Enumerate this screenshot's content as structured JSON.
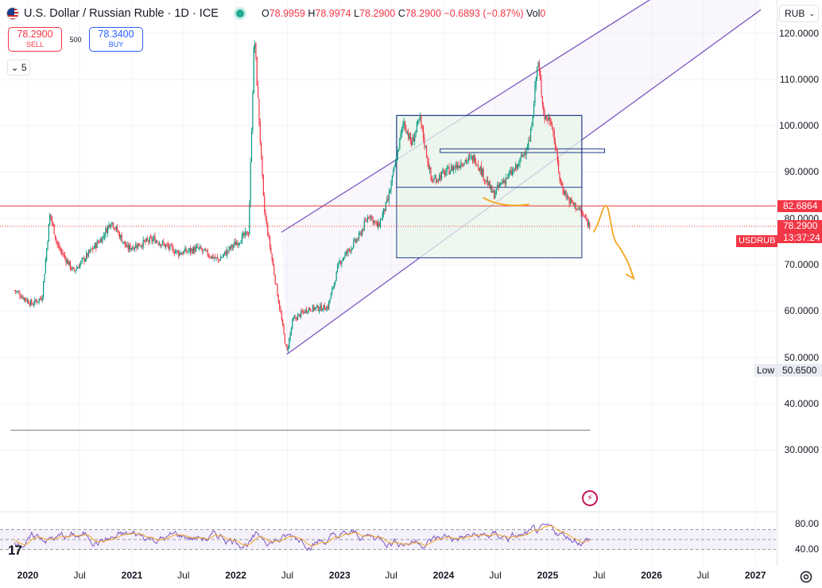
{
  "header": {
    "title": "U.S. Dollar / Russian Ruble · 1D · ICE",
    "o_label": "O",
    "o_value": "78.9959",
    "h_label": "H",
    "h_value": "78.9974",
    "l_label": "L",
    "l_value": "78.2900",
    "c_label": "C",
    "c_value": "78.2900",
    "change": "−0.6893 (−0.87%)",
    "vol_label": "Vol",
    "vol_value": "0"
  },
  "trade": {
    "sell_price": "78.2900",
    "sell_label": "SELL",
    "spread": "500",
    "buy_price": "78.3400",
    "buy_label": "BUY"
  },
  "indicators_collapse": {
    "count": "5"
  },
  "currency_selector": {
    "value": "RUB"
  },
  "price_axis": {
    "labels": [
      "120.0000",
      "110.0000",
      "100.0000",
      "90.0000",
      "80.0000",
      "70.0000",
      "60.0000",
      "50.0000",
      "40.0000",
      "30.0000"
    ]
  },
  "price_tags": {
    "hline_value": "82.6864",
    "symbol": "USDRUB",
    "last_price": "78.2900",
    "countdown": "13:37:24",
    "low_label": "Low",
    "low_value": "50.6500"
  },
  "rsi_axis": {
    "labels": [
      "80.00",
      "40.00"
    ]
  },
  "time_axis": {
    "labels": [
      "2020",
      "Jul",
      "2021",
      "Jul",
      "2022",
      "Jul",
      "2023",
      "Jul",
      "2024",
      "Jul",
      "2025",
      "Jul",
      "2026",
      "Jul",
      "2027"
    ],
    "bold": [
      true,
      false,
      true,
      false,
      true,
      false,
      true,
      false,
      true,
      false,
      true,
      false,
      true,
      false,
      true
    ]
  },
  "branding": {
    "logo": "17"
  },
  "colors": {
    "up": "#089981",
    "down": "#f23645",
    "channel": "#7e57c2",
    "box_fill": "#e8f5e9",
    "box_stroke": "#1e3a8a",
    "hline": "#e53935",
    "annotation": "#f5a623",
    "rsi": "#7e57c2",
    "rsi_ma": "#f5a623"
  },
  "chart_data": {
    "type": "candlestick",
    "symbol": "USDRUB",
    "interval": "1D",
    "ylim": [
      28,
      125
    ],
    "x_range": [
      "2019-11",
      "2027-03"
    ],
    "price_path": [
      [
        "2019-11-15",
        64.5
      ],
      [
        "2020-01-15",
        61.5
      ],
      [
        "2020-02-20",
        63.0
      ],
      [
        "2020-03-19",
        81.0
      ],
      [
        "2020-04-15",
        74.0
      ],
      [
        "2020-06-10",
        68.5
      ],
      [
        "2020-07-20",
        71.5
      ],
      [
        "2020-09-20",
        76.0
      ],
      [
        "2020-10-20",
        79.5
      ],
      [
        "2020-12-15",
        73.5
      ],
      [
        "2021-03-20",
        75.5
      ],
      [
        "2021-06-15",
        72.5
      ],
      [
        "2021-08-20",
        73.5
      ],
      [
        "2021-11-01",
        71.0
      ],
      [
        "2021-12-20",
        74.0
      ],
      [
        "2022-02-15",
        77.0
      ],
      [
        "2022-03-07",
        120.0
      ],
      [
        "2022-04-10",
        82.0
      ],
      [
        "2022-06-29",
        51.0
      ],
      [
        "2022-07-20",
        58.0
      ],
      [
        "2022-09-10",
        60.5
      ],
      [
        "2022-11-20",
        60.8
      ],
      [
        "2022-12-31",
        70.5
      ],
      [
        "2023-03-10",
        76.0
      ],
      [
        "2023-04-15",
        81.0
      ],
      [
        "2023-05-15",
        78.0
      ],
      [
        "2023-06-20",
        84.0
      ],
      [
        "2023-08-14",
        101.0
      ],
      [
        "2023-09-10",
        96.0
      ],
      [
        "2023-10-10",
        101.5
      ],
      [
        "2023-11-20",
        88.0
      ],
      [
        "2024-01-10",
        90.0
      ],
      [
        "2024-03-15",
        92.5
      ],
      [
        "2024-04-20",
        93.0
      ],
      [
        "2024-06-25",
        85.0
      ],
      [
        "2024-07-20",
        87.5
      ],
      [
        "2024-09-15",
        91.0
      ],
      [
        "2024-10-31",
        97.0
      ],
      [
        "2024-11-27",
        114.0
      ],
      [
        "2024-12-20",
        102.0
      ],
      [
        "2025-01-15",
        101.0
      ],
      [
        "2025-02-15",
        87.5
      ],
      [
        "2025-03-15",
        84.0
      ],
      [
        "2025-04-20",
        82.0
      ],
      [
        "2025-05-30",
        78.29
      ]
    ],
    "channel": {
      "upper": [
        [
          "2022-06-10",
          77.0
        ],
        [
          "2026-12-31",
          141.5
        ]
      ],
      "lower": [
        [
          "2022-06-29",
          50.65
        ],
        [
          "2027-01-20",
          125.0
        ]
      ]
    },
    "rectangles": [
      {
        "from": "2023-07-20",
        "to": "2025-05-01",
        "top": 102.2,
        "bottom": 71.5
      },
      {
        "from": "2023-07-20",
        "to": "2025-05-01",
        "top": 102.2,
        "bottom": 86.7
      },
      {
        "from": "2023-12-20",
        "to": "2025-07-20",
        "top": 95.0,
        "bottom": 94.2
      }
    ],
    "horizontal_lines": [
      {
        "price": 82.6864
      }
    ],
    "horizontal_ray": {
      "price": 34.3,
      "from": "2019-11",
      "to": "2025-05-31"
    },
    "drawings": [
      "orange projection arrow",
      "orange support mark"
    ],
    "indicators": [
      {
        "name": "RSI",
        "levels": [
          70,
          30
        ],
        "axis_labels": [
          80,
          40
        ]
      }
    ],
    "last_price": 78.29,
    "low": 50.65
  }
}
